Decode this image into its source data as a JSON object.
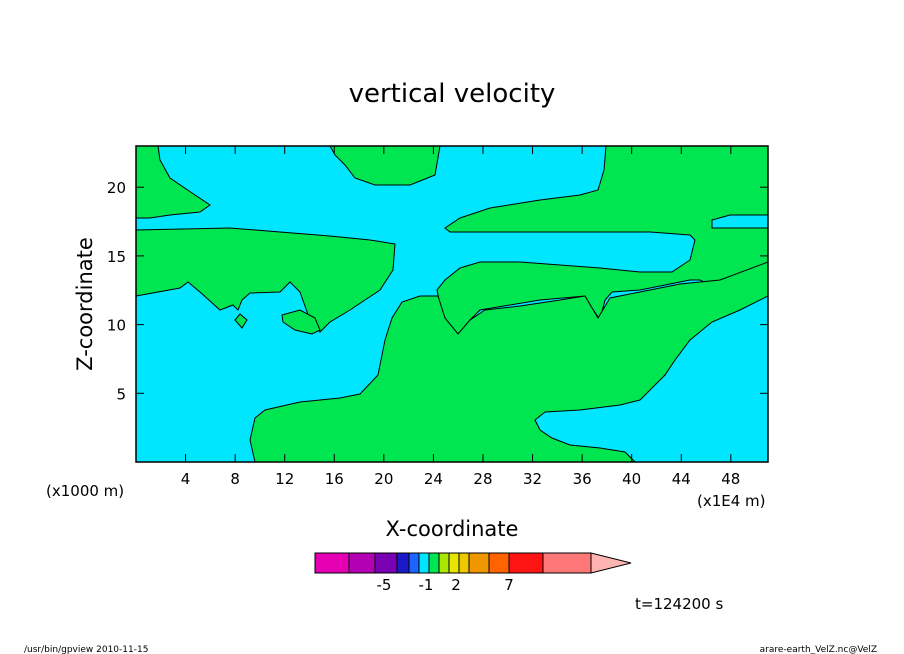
{
  "chart_data": {
    "type": "heatmap",
    "title": "vertical velocity",
    "xlabel": "X-coordinate",
    "ylabel": "Z-coordinate",
    "x_scale_note": "(x1000 m)",
    "x_unit_note": "(x1E4 m)",
    "x_ticks": [
      "4",
      "8",
      "12",
      "16",
      "20",
      "24",
      "28",
      "32",
      "36",
      "40",
      "44",
      "48"
    ],
    "y_ticks": [
      "5",
      "10",
      "15",
      "20"
    ],
    "xlim": [
      0,
      51
    ],
    "ylim": [
      0,
      23
    ],
    "time_label": "t=124200 s",
    "colorbar": {
      "colors": [
        "#e600b4",
        "#b400b4",
        "#7a00b4",
        "#1a1ac8",
        "#1e64ff",
        "#00e6ff",
        "#00e650",
        "#aae600",
        "#e6e600",
        "#f0c800",
        "#f09600",
        "#ff6400",
        "#ff1414",
        "#ff7878",
        "#ffb4b4"
      ],
      "tick_labels": [
        "-5",
        "-1",
        "2",
        "7"
      ]
    },
    "regions": [
      {
        "value_color": "#00e6ff",
        "description_level": "background"
      },
      {
        "value_color": "#00e650",
        "description_level": "upper band"
      }
    ]
  },
  "footer": {
    "left": "/usr/bin/gpview   2010-11-15",
    "right": "arare-earth_VelZ.nc@VelZ"
  }
}
